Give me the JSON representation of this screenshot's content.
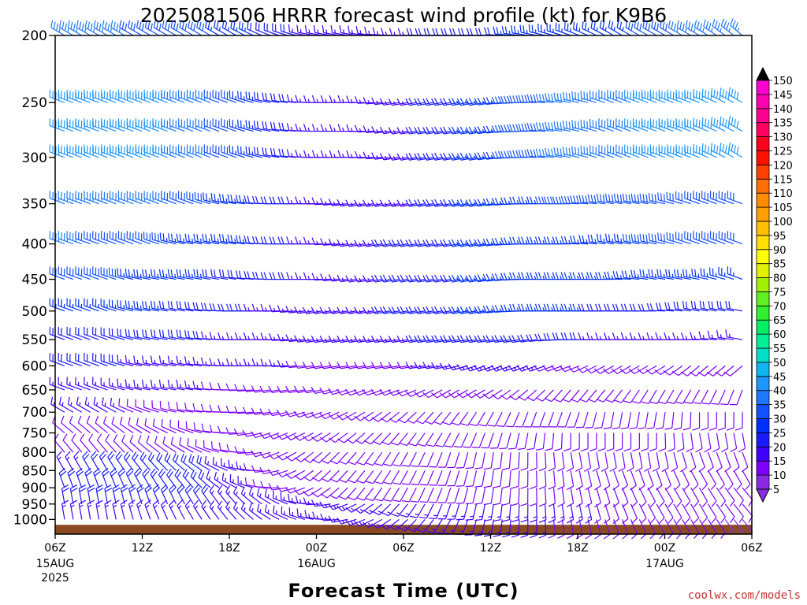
{
  "chart_data": {
    "type": "wind-barb-profile",
    "title": "2025081506 HRRR forecast wind profile (kt) for K9B6",
    "xlabel": "Forecast Time (UTC)",
    "credit": "coolwx.com/models",
    "y_axis": {
      "scale": "log-pressure",
      "ylim": [
        1050,
        200
      ],
      "ticks": [
        "200",
        "250",
        "300",
        "350",
        "400",
        "450",
        "500",
        "550",
        "600",
        "650",
        "700",
        "750",
        "800",
        "850",
        "900",
        "950",
        "1000"
      ]
    },
    "x_axis": {
      "xlim_hours": [
        0,
        48
      ],
      "ticks": [
        {
          "hour": 0,
          "label": "06Z",
          "sub": "15AUG",
          "sub2": "2025"
        },
        {
          "hour": 6,
          "label": "12Z",
          "sub": "",
          "sub2": ""
        },
        {
          "hour": 12,
          "label": "18Z",
          "sub": "",
          "sub2": ""
        },
        {
          "hour": 18,
          "label": "00Z",
          "sub": "16AUG",
          "sub2": ""
        },
        {
          "hour": 24,
          "label": "06Z",
          "sub": "",
          "sub2": ""
        },
        {
          "hour": 30,
          "label": "12Z",
          "sub": "",
          "sub2": ""
        },
        {
          "hour": 36,
          "label": "18Z",
          "sub": "",
          "sub2": ""
        },
        {
          "hour": 42,
          "label": "00Z",
          "sub": "17AUG",
          "sub2": ""
        },
        {
          "hour": 48,
          "label": "06Z",
          "sub": "",
          "sub2": ""
        }
      ]
    },
    "colorbar": {
      "levels": [
        5,
        10,
        15,
        20,
        25,
        30,
        35,
        40,
        45,
        50,
        55,
        60,
        65,
        70,
        75,
        80,
        85,
        90,
        95,
        100,
        105,
        110,
        115,
        120,
        125,
        130,
        135,
        140,
        145,
        150
      ],
      "labels": [
        "5",
        "10",
        "15",
        "20",
        "25",
        "30",
        "35",
        "40",
        "45",
        "50",
        "55",
        "60",
        "65",
        "70",
        "75",
        "80",
        "85",
        "90",
        "95",
        "100",
        "105",
        "110",
        "115",
        "120",
        "125",
        "130",
        "135",
        "140",
        "145",
        "150"
      ],
      "colors": [
        "#8a2be2",
        "#7b00ff",
        "#4000ff",
        "#1a1aff",
        "#0030ff",
        "#1450ff",
        "#1e78ff",
        "#1e96ff",
        "#10b4f0",
        "#00e0c8",
        "#00f096",
        "#00f064",
        "#30f030",
        "#60f020",
        "#a0f000",
        "#e0f000",
        "#ffff00",
        "#ffe000",
        "#ffc000",
        "#ffa000",
        "#ff8c00",
        "#ff7000",
        "#ff4000",
        "#ff1000",
        "#ff0020",
        "#ff0060",
        "#ff0090",
        "#ff00b0",
        "#ff00d0",
        "#ff00ff"
      ]
    },
    "series": [
      {
        "p": 200,
        "speed": [
          35,
          35,
          30,
          30,
          25,
          20,
          15,
          15,
          15,
          20,
          20,
          25,
          25,
          25,
          30,
          35,
          35
        ],
        "dir": [
          300,
          300,
          300,
          300,
          300,
          290,
          280,
          280,
          270,
          270,
          270,
          280,
          290,
          300,
          300,
          300,
          310
        ]
      },
      {
        "p": 250,
        "speed": [
          40,
          40,
          40,
          35,
          30,
          20,
          15,
          15,
          15,
          20,
          25,
          30,
          35,
          35,
          40,
          40,
          40
        ],
        "dir": [
          290,
          290,
          290,
          290,
          290,
          280,
          270,
          270,
          260,
          260,
          260,
          270,
          280,
          290,
          290,
          290,
          300
        ]
      },
      {
        "p": 275,
        "speed": [
          40,
          40,
          40,
          35,
          30,
          20,
          15,
          15,
          15,
          20,
          25,
          30,
          35,
          35,
          40,
          40,
          40
        ],
        "dir": [
          290,
          290,
          290,
          290,
          290,
          280,
          270,
          270,
          260,
          260,
          260,
          270,
          280,
          290,
          290,
          290,
          300
        ]
      },
      {
        "p": 300,
        "speed": [
          40,
          40,
          40,
          35,
          30,
          20,
          15,
          15,
          15,
          20,
          25,
          30,
          35,
          35,
          40,
          40,
          40
        ],
        "dir": [
          290,
          290,
          290,
          290,
          290,
          280,
          270,
          270,
          260,
          260,
          260,
          270,
          280,
          290,
          290,
          290,
          300
        ]
      },
      {
        "p": 350,
        "speed": [
          35,
          35,
          35,
          30,
          25,
          20,
          15,
          15,
          15,
          20,
          25,
          25,
          30,
          30,
          30,
          30,
          30
        ],
        "dir": [
          290,
          290,
          290,
          290,
          280,
          270,
          270,
          260,
          260,
          260,
          260,
          270,
          270,
          280,
          280,
          290,
          290
        ]
      },
      {
        "p": 400,
        "speed": [
          35,
          30,
          30,
          25,
          25,
          20,
          15,
          15,
          20,
          20,
          25,
          25,
          25,
          25,
          30,
          30,
          30
        ],
        "dir": [
          290,
          290,
          290,
          280,
          280,
          270,
          270,
          260,
          260,
          260,
          260,
          270,
          270,
          280,
          280,
          290,
          290
        ]
      },
      {
        "p": 450,
        "speed": [
          30,
          30,
          25,
          25,
          20,
          20,
          15,
          15,
          20,
          20,
          25,
          25,
          25,
          25,
          25,
          25,
          25
        ],
        "dir": [
          290,
          290,
          280,
          280,
          280,
          270,
          270,
          260,
          260,
          260,
          260,
          270,
          270,
          270,
          280,
          280,
          290
        ]
      },
      {
        "p": 500,
        "speed": [
          25,
          25,
          25,
          20,
          20,
          15,
          15,
          15,
          20,
          20,
          25,
          25,
          25,
          20,
          20,
          20,
          20
        ],
        "dir": [
          290,
          290,
          280,
          280,
          270,
          270,
          260,
          260,
          260,
          260,
          260,
          270,
          270,
          270,
          270,
          280,
          280
        ]
      },
      {
        "p": 550,
        "speed": [
          20,
          20,
          20,
          20,
          15,
          15,
          15,
          15,
          15,
          20,
          20,
          20,
          20,
          15,
          15,
          15,
          15
        ],
        "dir": [
          290,
          290,
          280,
          280,
          270,
          270,
          260,
          260,
          260,
          260,
          260,
          260,
          270,
          270,
          270,
          270,
          280
        ]
      },
      {
        "p": 600,
        "speed": [
          20,
          20,
          15,
          15,
          15,
          15,
          10,
          10,
          10,
          15,
          15,
          15,
          10,
          10,
          10,
          10,
          10
        ],
        "dir": [
          290,
          290,
          280,
          280,
          270,
          270,
          260,
          260,
          260,
          260,
          250,
          250,
          250,
          240,
          240,
          230,
          230
        ]
      },
      {
        "p": 650,
        "speed": [
          15,
          15,
          15,
          15,
          10,
          10,
          10,
          10,
          10,
          10,
          10,
          10,
          10,
          10,
          10,
          10,
          10
        ],
        "dir": [
          290,
          290,
          280,
          280,
          270,
          260,
          260,
          250,
          250,
          240,
          240,
          230,
          220,
          220,
          210,
          210,
          200
        ]
      },
      {
        "p": 700,
        "speed": [
          15,
          15,
          10,
          10,
          10,
          10,
          10,
          10,
          10,
          10,
          10,
          10,
          10,
          10,
          10,
          10,
          10
        ],
        "dir": [
          300,
          300,
          290,
          280,
          270,
          260,
          250,
          240,
          230,
          220,
          210,
          200,
          200,
          190,
          190,
          180,
          180
        ]
      },
      {
        "p": 750,
        "speed": [
          10,
          10,
          10,
          10,
          10,
          10,
          10,
          10,
          10,
          10,
          10,
          10,
          10,
          10,
          10,
          10,
          10
        ],
        "dir": [
          310,
          310,
          300,
          290,
          270,
          250,
          240,
          230,
          220,
          210,
          200,
          190,
          180,
          180,
          180,
          170,
          170
        ]
      },
      {
        "p": 800,
        "speed": [
          10,
          10,
          10,
          10,
          10,
          10,
          10,
          10,
          10,
          10,
          10,
          10,
          10,
          10,
          10,
          10,
          10
        ],
        "dir": [
          320,
          320,
          310,
          300,
          280,
          250,
          230,
          220,
          210,
          200,
          190,
          180,
          170,
          170,
          170,
          160,
          160
        ]
      },
      {
        "p": 850,
        "speed": [
          15,
          20,
          20,
          20,
          15,
          10,
          10,
          10,
          10,
          10,
          10,
          10,
          10,
          10,
          10,
          10,
          10
        ],
        "dir": [
          330,
          330,
          320,
          310,
          290,
          260,
          230,
          220,
          210,
          200,
          190,
          180,
          170,
          160,
          160,
          150,
          150
        ]
      },
      {
        "p": 900,
        "speed": [
          20,
          20,
          20,
          20,
          15,
          10,
          10,
          10,
          10,
          10,
          10,
          10,
          10,
          10,
          10,
          10,
          10
        ],
        "dir": [
          340,
          340,
          330,
          320,
          300,
          270,
          240,
          220,
          210,
          200,
          190,
          180,
          170,
          160,
          150,
          150,
          140
        ]
      },
      {
        "p": 950,
        "speed": [
          20,
          20,
          20,
          20,
          15,
          15,
          15,
          15,
          15,
          15,
          15,
          15,
          15,
          10,
          10,
          10,
          10
        ],
        "dir": [
          350,
          350,
          340,
          330,
          320,
          300,
          270,
          240,
          220,
          200,
          190,
          180,
          170,
          160,
          150,
          150,
          140
        ]
      },
      {
        "p": 1000,
        "speed": [
          15,
          15,
          15,
          15,
          15,
          15,
          15,
          15,
          15,
          15,
          15,
          15,
          10,
          10,
          10,
          10,
          5
        ],
        "dir": [
          350,
          350,
          340,
          330,
          320,
          300,
          280,
          250,
          230,
          210,
          190,
          180,
          170,
          160,
          150,
          150,
          140
        ]
      }
    ],
    "terrain": {
      "color": "#8b4b22",
      "top_pressure": 1018
    }
  }
}
